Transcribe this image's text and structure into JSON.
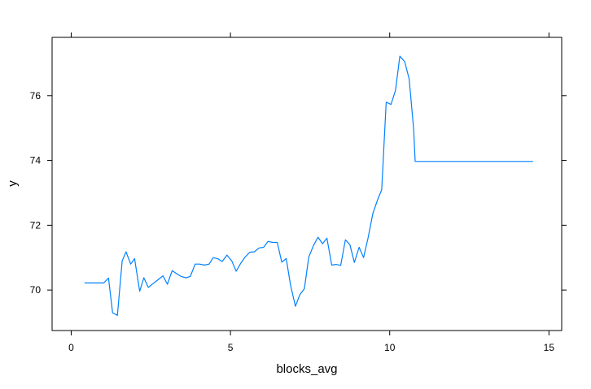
{
  "chart_data": {
    "type": "line",
    "title": "",
    "xlabel": "blocks_avg",
    "ylabel": "y",
    "xlim": [
      -0.6,
      15.4
    ],
    "ylim": [
      68.75,
      77.8
    ],
    "x_ticks": [
      0,
      5,
      10,
      15
    ],
    "x_tick_labels": [
      "0",
      "5",
      "10",
      "15"
    ],
    "y_ticks": [
      70,
      72,
      74,
      76
    ],
    "y_tick_labels": [
      "70",
      "72",
      "74",
      "76"
    ],
    "grid": false,
    "legend": "none",
    "series": [
      {
        "color": "#0080ff",
        "x": [
          0.42,
          0.59,
          0.73,
          0.88,
          1.02,
          1.17,
          1.3,
          1.45,
          1.6,
          1.72,
          1.87,
          1.99,
          2.15,
          2.28,
          2.42,
          2.57,
          2.73,
          2.88,
          3.02,
          3.17,
          3.32,
          3.45,
          3.6,
          3.74,
          3.89,
          4.03,
          4.18,
          4.33,
          4.46,
          4.61,
          4.74,
          4.89,
          5.04,
          5.18,
          5.32,
          5.46,
          5.61,
          5.75,
          5.9,
          6.04,
          6.18,
          6.33,
          6.47,
          6.61,
          6.75,
          6.89,
          7.04,
          7.18,
          7.32,
          7.46,
          7.61,
          7.75,
          7.89,
          8.03,
          8.18,
          8.32,
          8.46,
          8.61,
          8.75,
          8.89,
          9.04,
          9.18,
          9.32,
          9.47,
          9.61,
          9.75,
          9.89,
          10.04,
          10.18,
          10.32,
          10.47,
          10.61,
          10.75,
          10.8,
          14.5
        ],
        "y": [
          70.22,
          70.22,
          70.22,
          70.22,
          70.22,
          70.37,
          69.3,
          69.22,
          70.9,
          71.18,
          70.8,
          70.97,
          69.96,
          70.38,
          70.08,
          70.2,
          70.32,
          70.44,
          70.18,
          70.6,
          70.5,
          70.42,
          70.38,
          70.42,
          70.8,
          70.8,
          70.77,
          70.8,
          71.0,
          70.96,
          70.88,
          71.08,
          70.9,
          70.58,
          70.82,
          71.02,
          71.17,
          71.18,
          71.3,
          71.32,
          71.5,
          71.47,
          71.47,
          70.86,
          70.97,
          70.14,
          69.5,
          69.86,
          70.04,
          71.02,
          71.38,
          71.63,
          71.43,
          71.6,
          70.77,
          70.79,
          70.76,
          71.55,
          71.4,
          70.85,
          71.32,
          71.0,
          71.6,
          72.36,
          72.76,
          73.1,
          75.8,
          75.73,
          76.16,
          77.22,
          77.05,
          76.52,
          74.98,
          73.97,
          73.97
        ]
      }
    ]
  }
}
